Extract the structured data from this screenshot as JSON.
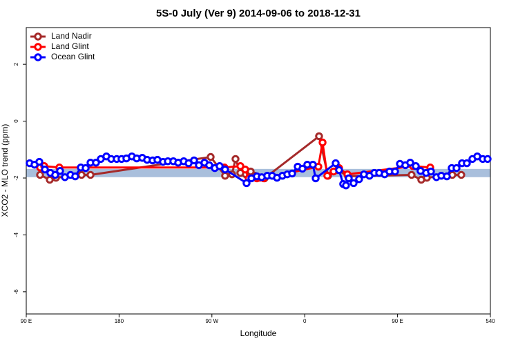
{
  "chart_data": {
    "type": "line",
    "title": "5S-0 July (Ver 9)   2014-09-06 to 2018-12-31",
    "x_label": "Longitude",
    "y_label": "XCO2 - MLO trend (ppm)",
    "xlim": [
      90,
      540
    ],
    "ylim": [
      -6.78,
      3.29
    ],
    "xticks": [
      {
        "value": 90,
        "label": "90 E"
      },
      180,
      {
        "value": 270,
        "label": "90 W"
      },
      {
        "value": 360,
        "label": "0"
      },
      {
        "value": 450,
        "label": "90 E"
      },
      540
    ],
    "yticks": [
      -6,
      -4,
      -2,
      0,
      2
    ],
    "band": [
      -1.97,
      -1.68
    ],
    "band_color": "#a9bfdc",
    "legend": "top-left",
    "series": [
      {
        "name": "Land Nadir",
        "color": "#a52a2a",
        "x": [
          103.4,
          112.8,
          118.8,
          143.6,
          152.3,
          268.8,
          282.8,
          289.5,
          292.9,
          297.6,
          302.9,
          307.6,
          311.6,
          316.3,
          321.0,
          373.9,
          382.6,
          392.0,
          402.0,
          463.6,
          473.0,
          478.4,
          503.1,
          511.8
        ],
        "values": [
          -1.89,
          -2.06,
          -1.99,
          -1.89,
          -1.89,
          -1.26,
          -1.92,
          -1.87,
          -1.33,
          -1.82,
          -1.87,
          -1.77,
          -1.92,
          -1.99,
          -2.01,
          -0.53,
          -1.92,
          -1.72,
          -1.94,
          -1.89,
          -2.06,
          -1.99,
          -1.89,
          -1.89
        ]
      },
      {
        "name": "Land Glint",
        "color": "#ff0000",
        "x": [
          103.4,
          107.4,
          122.1,
          282.2,
          297.6,
          302.3,
          305.6,
          313.6,
          320.3,
          373.2,
          377.3,
          381.9,
          388.0,
          393.3,
          401.4,
          465.0,
          481.7
        ],
        "values": [
          -1.63,
          -1.58,
          -1.63,
          -1.63,
          -1.58,
          -1.7,
          -2.01,
          -2.01,
          -2.01,
          -1.6,
          -0.75,
          -1.92,
          -1.77,
          -1.65,
          -1.87,
          -1.58,
          -1.63
        ]
      },
      {
        "name": "Ocean Glint",
        "color": "#0000ff",
        "x": [
          93.3,
          98.0,
          102.7,
          108.1,
          113.4,
          118.1,
          122.8,
          127.5,
          132.9,
          137.5,
          142.9,
          147.6,
          152.3,
          157.6,
          162.3,
          167.7,
          172.4,
          177.7,
          182.4,
          187.1,
          192.4,
          197.1,
          202.5,
          207.2,
          212.5,
          217.2,
          222.6,
          227.3,
          232.6,
          237.3,
          242.7,
          247.4,
          252.7,
          257.4,
          262.8,
          267.4,
          272.8,
          277.5,
          282.8,
          303.6,
          308.3,
          313.6,
          318.3,
          323.7,
          328.4,
          333.1,
          338.4,
          343.1,
          347.8,
          353.2,
          357.8,
          362.5,
          367.9,
          370.6,
          390.0,
          393.3,
          397.3,
          400.0,
          402.7,
          407.4,
          412.7,
          417.4,
          422.8,
          427.5,
          432.2,
          437.5,
          442.2,
          447.6,
          452.3,
          457.6,
          462.3,
          467.7,
          472.3,
          477.7,
          482.4,
          487.7,
          492.4,
          497.8,
          502.5,
          507.2,
          512.5,
          517.2,
          522.6,
          527.3,
          532.6,
          537.3
        ],
        "values": [
          -1.48,
          -1.53,
          -1.43,
          -1.7,
          -1.82,
          -1.89,
          -1.75,
          -1.97,
          -1.89,
          -1.94,
          -1.63,
          -1.65,
          -1.46,
          -1.46,
          -1.33,
          -1.24,
          -1.33,
          -1.33,
          -1.33,
          -1.31,
          -1.24,
          -1.31,
          -1.29,
          -1.36,
          -1.38,
          -1.36,
          -1.43,
          -1.41,
          -1.41,
          -1.46,
          -1.41,
          -1.48,
          -1.38,
          -1.55,
          -1.46,
          -1.55,
          -1.65,
          -1.58,
          -1.7,
          -2.18,
          -2.01,
          -1.94,
          -1.97,
          -1.92,
          -1.92,
          -1.99,
          -1.92,
          -1.87,
          -1.84,
          -1.6,
          -1.67,
          -1.53,
          -1.53,
          -2.01,
          -1.48,
          -1.72,
          -2.21,
          -2.26,
          -2.01,
          -2.18,
          -2.04,
          -1.87,
          -1.92,
          -1.82,
          -1.82,
          -1.87,
          -1.77,
          -1.77,
          -1.5,
          -1.55,
          -1.46,
          -1.58,
          -1.75,
          -1.82,
          -1.77,
          -1.97,
          -1.92,
          -1.94,
          -1.65,
          -1.65,
          -1.48,
          -1.48,
          -1.33,
          -1.24,
          -1.33,
          -1.33
        ]
      }
    ]
  }
}
